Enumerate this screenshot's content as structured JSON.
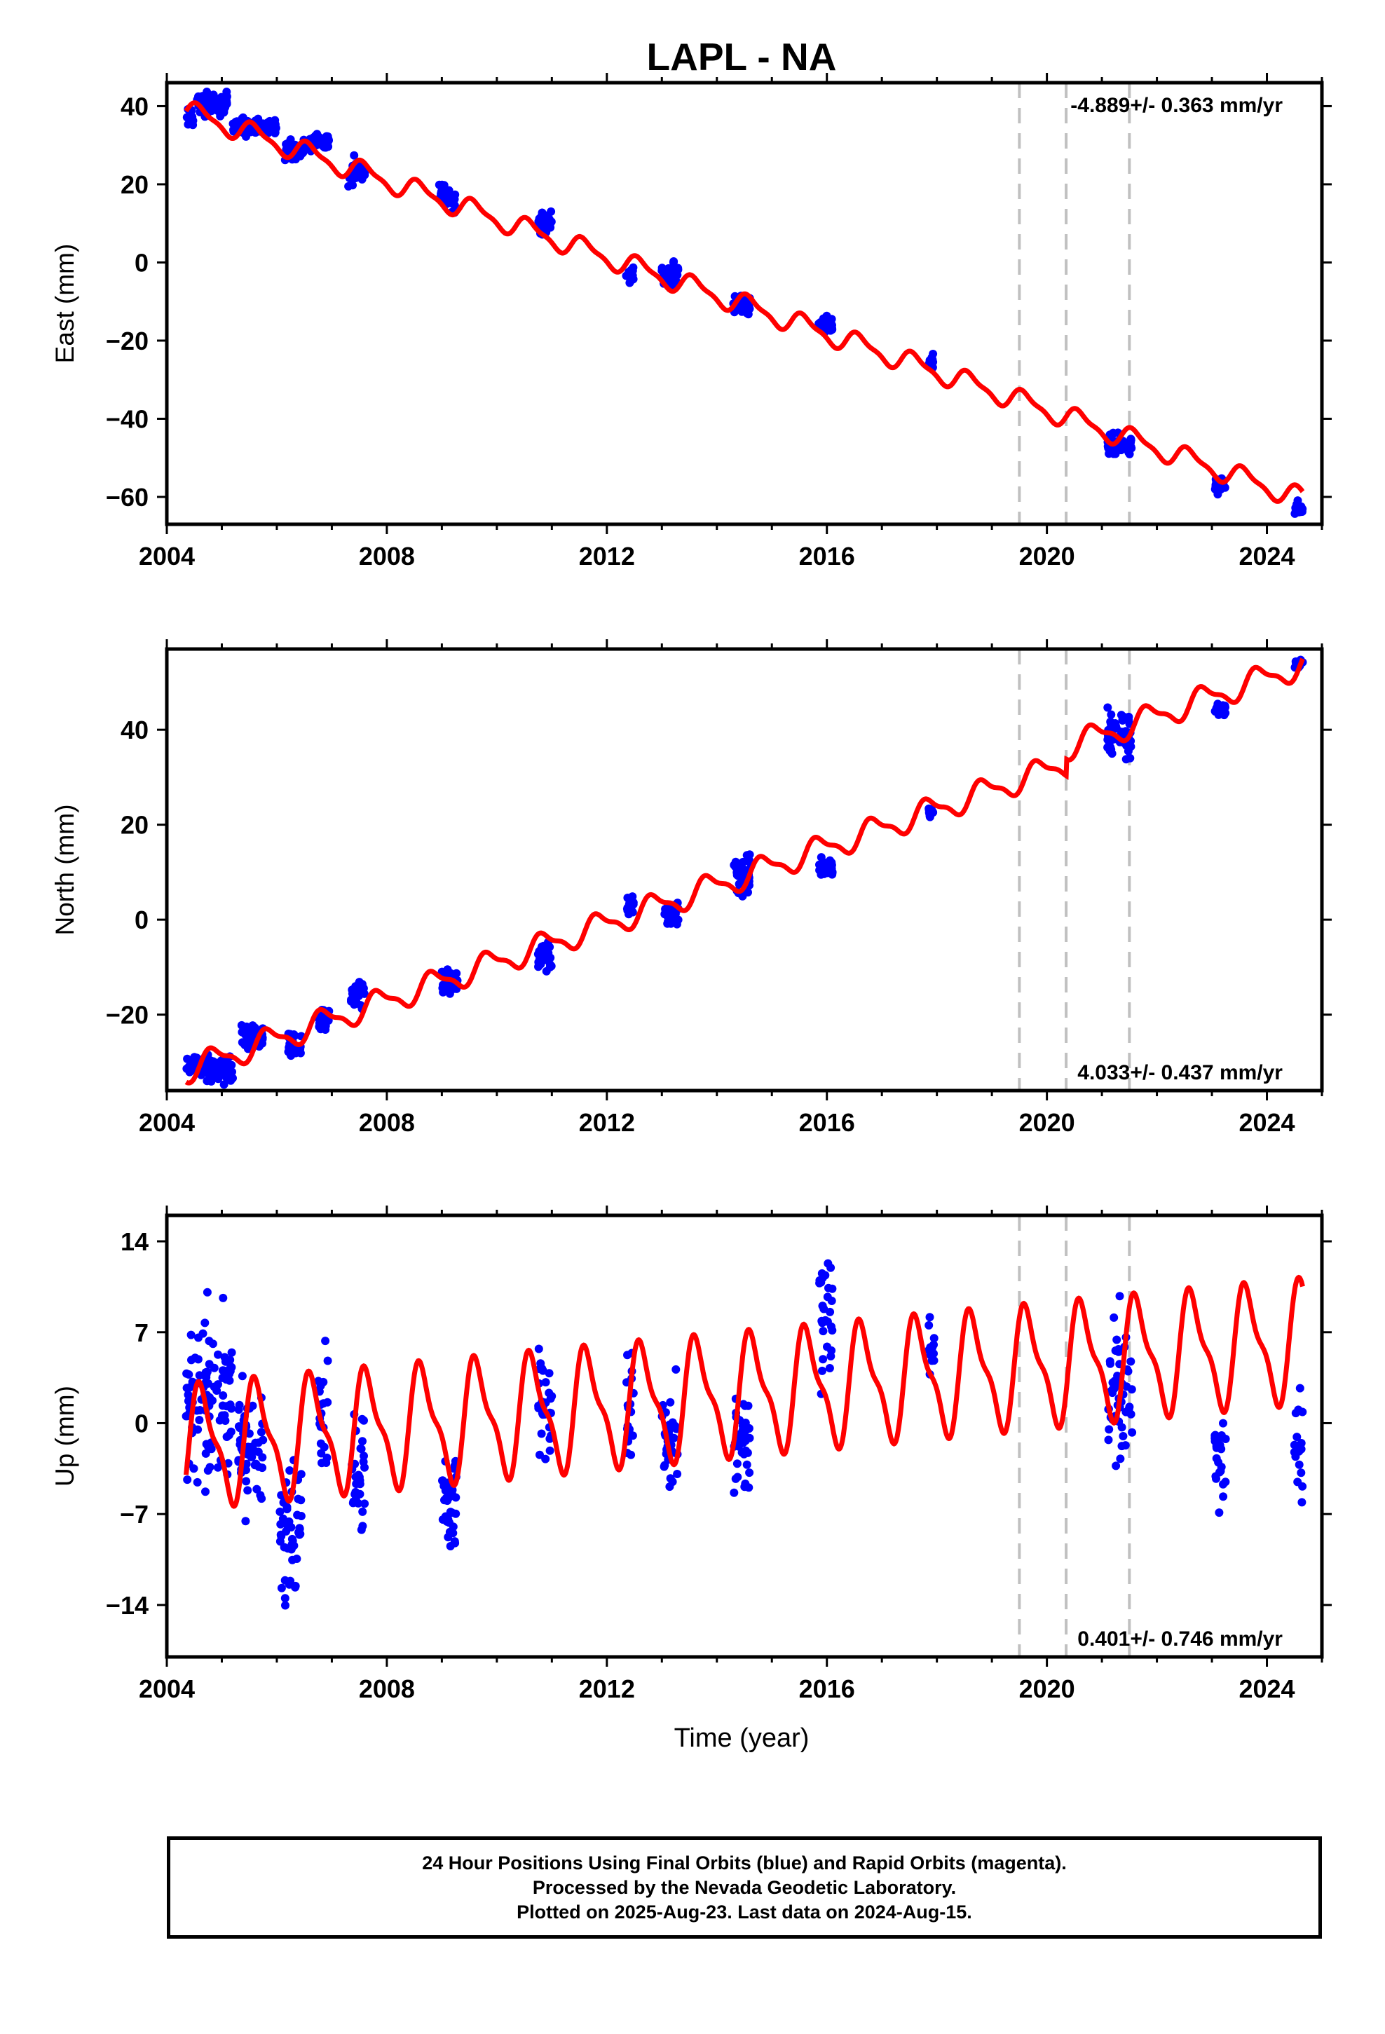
{
  "title": "LAPL - NA",
  "xlabel": "Time (year)",
  "footer": {
    "line1": "24 Hour Positions Using Final Orbits (blue) and Rapid Orbits (magenta).",
    "line2": "Processed by the Nevada Geodetic Laboratory.",
    "line3": "Plotted on 2025-Aug-23. Last data on 2024-Aug-15."
  },
  "colors": {
    "data": "#0000ff",
    "model": "#ff0000",
    "breaks": "#c0c0c0",
    "frame": "#000000"
  },
  "chart_data": [
    {
      "type": "scatter",
      "name": "east",
      "ylabel": "East (mm)",
      "rate": "-4.889+/- 0.363 mm/yr",
      "rate_position": "top-right",
      "xlim": [
        2004.0,
        2025.0
      ],
      "ylim": [
        -67,
        46
      ],
      "xticks": [
        2004,
        2008,
        2012,
        2016,
        2020,
        2024
      ],
      "yticks": [
        40,
        20,
        0,
        -20,
        -40,
        -60
      ],
      "ytick_labels": [
        "40",
        "20",
        "0",
        "−20",
        "−40",
        "−60"
      ],
      "breaks": [
        2019.5,
        2020.35,
        2021.5
      ],
      "model": {
        "intercept": 38.5,
        "slope": -4.889,
        "annual_amp": 2.5,
        "annual_phase": 0.35,
        "offsets": []
      },
      "data_windows": [
        {
          "x": [
            2004.35,
            2004.5
          ],
          "center": 37.5,
          "spread": 2.5
        },
        {
          "x": [
            2004.55,
            2005.1
          ],
          "center": 40.5,
          "spread": 2.5
        },
        {
          "x": [
            2005.2,
            2005.6
          ],
          "center": 34.5,
          "spread": 2.0
        },
        {
          "x": [
            2005.6,
            2006.0
          ],
          "center": 35,
          "spread": 1.5
        },
        {
          "x": [
            2006.15,
            2006.5
          ],
          "center": 28.5,
          "spread": 2.5
        },
        {
          "x": [
            2006.6,
            2006.95
          ],
          "center": 31,
          "spread": 2.0
        },
        {
          "x": [
            2007.3,
            2007.6
          ],
          "center": 23,
          "spread": 3.0
        },
        {
          "x": [
            2008.95,
            2009.25
          ],
          "center": 17,
          "spread": 3.0
        },
        {
          "x": [
            2010.75,
            2011.0
          ],
          "center": 10,
          "spread": 3.0
        },
        {
          "x": [
            2012.35,
            2012.5
          ],
          "center": -3,
          "spread": 2.0
        },
        {
          "x": [
            2013.0,
            2013.3
          ],
          "center": -3,
          "spread": 3.0
        },
        {
          "x": [
            2014.3,
            2014.6
          ],
          "center": -11,
          "spread": 2.0
        },
        {
          "x": [
            2015.85,
            2016.1
          ],
          "center": -16,
          "spread": 2.0
        },
        {
          "x": [
            2017.85,
            2017.95
          ],
          "center": -26,
          "spread": 2.0
        },
        {
          "x": [
            2021.1,
            2021.55
          ],
          "center": -47,
          "spread": 2.5
        },
        {
          "x": [
            2023.05,
            2023.25
          ],
          "center": -57,
          "spread": 2.0
        },
        {
          "x": [
            2024.5,
            2024.65
          ],
          "center": -63,
          "spread": 1.5
        }
      ]
    },
    {
      "type": "scatter",
      "name": "north",
      "ylabel": "North (mm)",
      "rate": "4.033+/- 0.437 mm/yr",
      "rate_position": "bottom-right",
      "xlim": [
        2004.0,
        2025.0
      ],
      "ylim": [
        -36,
        57
      ],
      "xticks": [
        2004,
        2008,
        2012,
        2016,
        2020,
        2024
      ],
      "yticks": [
        40,
        20,
        0,
        -20
      ],
      "ytick_labels": [
        "40",
        "20",
        "0",
        "−20"
      ],
      "breaks": [
        2019.5,
        2020.35,
        2021.5
      ],
      "model": {
        "intercept": -31.5,
        "slope": 4.033,
        "annual_amp": 2.5,
        "annual_phase": 0.6,
        "offsets": [
          [
            2020.35,
            3.5
          ]
        ]
      },
      "data_windows": [
        {
          "x": [
            2004.35,
            2004.55
          ],
          "center": -30,
          "spread": 2.0
        },
        {
          "x": [
            2004.6,
            2005.2
          ],
          "center": -31.5,
          "spread": 2.5
        },
        {
          "x": [
            2005.35,
            2005.75
          ],
          "center": -25,
          "spread": 2.0
        },
        {
          "x": [
            2006.2,
            2006.45
          ],
          "center": -26,
          "spread": 2.5
        },
        {
          "x": [
            2006.75,
            2006.95
          ],
          "center": -21,
          "spread": 2.0
        },
        {
          "x": [
            2007.35,
            2007.6
          ],
          "center": -16,
          "spread": 2.5
        },
        {
          "x": [
            2009.0,
            2009.3
          ],
          "center": -13,
          "spread": 2.0
        },
        {
          "x": [
            2010.75,
            2011.0
          ],
          "center": -7,
          "spread": 3.5
        },
        {
          "x": [
            2012.35,
            2012.5
          ],
          "center": 3,
          "spread": 2.0
        },
        {
          "x": [
            2013.05,
            2013.3
          ],
          "center": 1,
          "spread": 3.0
        },
        {
          "x": [
            2014.3,
            2014.6
          ],
          "center": 10,
          "spread": 4.5
        },
        {
          "x": [
            2015.85,
            2016.1
          ],
          "center": 11,
          "spread": 2.0
        },
        {
          "x": [
            2017.85,
            2017.95
          ],
          "center": 22.5,
          "spread": 1.0
        },
        {
          "x": [
            2021.1,
            2021.55
          ],
          "center": 39,
          "spread": 4.5
        },
        {
          "x": [
            2023.05,
            2023.25
          ],
          "center": 44,
          "spread": 1.5
        },
        {
          "x": [
            2024.5,
            2024.65
          ],
          "center": 54,
          "spread": 1.0
        }
      ]
    },
    {
      "type": "scatter",
      "name": "up",
      "ylabel": "Up (mm)",
      "rate": "0.401+/- 0.746 mm/yr",
      "rate_position": "bottom-right",
      "xlim": [
        2004.0,
        2025.0
      ],
      "ylim": [
        -18,
        16
      ],
      "xticks": [
        2004,
        2008,
        2012,
        2016,
        2020,
        2024
      ],
      "yticks": [
        14,
        7,
        0,
        -7,
        -14
      ],
      "ytick_labels": [
        "14",
        "7",
        "0",
        "−7",
        "−14"
      ],
      "breaks": [
        2019.5,
        2020.35,
        2021.5
      ],
      "model": {
        "intercept": -1.8,
        "slope": 0.401,
        "annual_amp": 4.2,
        "annual_phase": 0.4,
        "offsets": []
      },
      "data_windows": [
        {
          "x": [
            2004.35,
            2004.55
          ],
          "center": 1,
          "spread": 5
        },
        {
          "x": [
            2004.55,
            2005.2
          ],
          "center": 2,
          "spread": 5
        },
        {
          "x": [
            2005.3,
            2005.75
          ],
          "center": -2,
          "spread": 4
        },
        {
          "x": [
            2006.05,
            2006.45
          ],
          "center": -8,
          "spread": 4.5
        },
        {
          "x": [
            2006.75,
            2006.95
          ],
          "center": 1,
          "spread": 4
        },
        {
          "x": [
            2007.35,
            2007.6
          ],
          "center": -3,
          "spread": 4
        },
        {
          "x": [
            2009.0,
            2009.3
          ],
          "center": -6,
          "spread": 3.5
        },
        {
          "x": [
            2010.75,
            2011.0
          ],
          "center": 1.5,
          "spread": 4
        },
        {
          "x": [
            2012.35,
            2012.5
          ],
          "center": 1,
          "spread": 4
        },
        {
          "x": [
            2013.0,
            2013.3
          ],
          "center": -2,
          "spread": 4.5
        },
        {
          "x": [
            2014.3,
            2014.6
          ],
          "center": -2,
          "spread": 4
        },
        {
          "x": [
            2015.85,
            2016.1
          ],
          "center": 8,
          "spread": 4
        },
        {
          "x": [
            2017.85,
            2017.95
          ],
          "center": 6,
          "spread": 2
        },
        {
          "x": [
            2021.1,
            2021.55
          ],
          "center": 2,
          "spread": 5
        },
        {
          "x": [
            2023.05,
            2023.25
          ],
          "center": -3,
          "spread": 3.5
        },
        {
          "x": [
            2024.5,
            2024.65
          ],
          "center": -2,
          "spread": 3
        }
      ]
    }
  ]
}
